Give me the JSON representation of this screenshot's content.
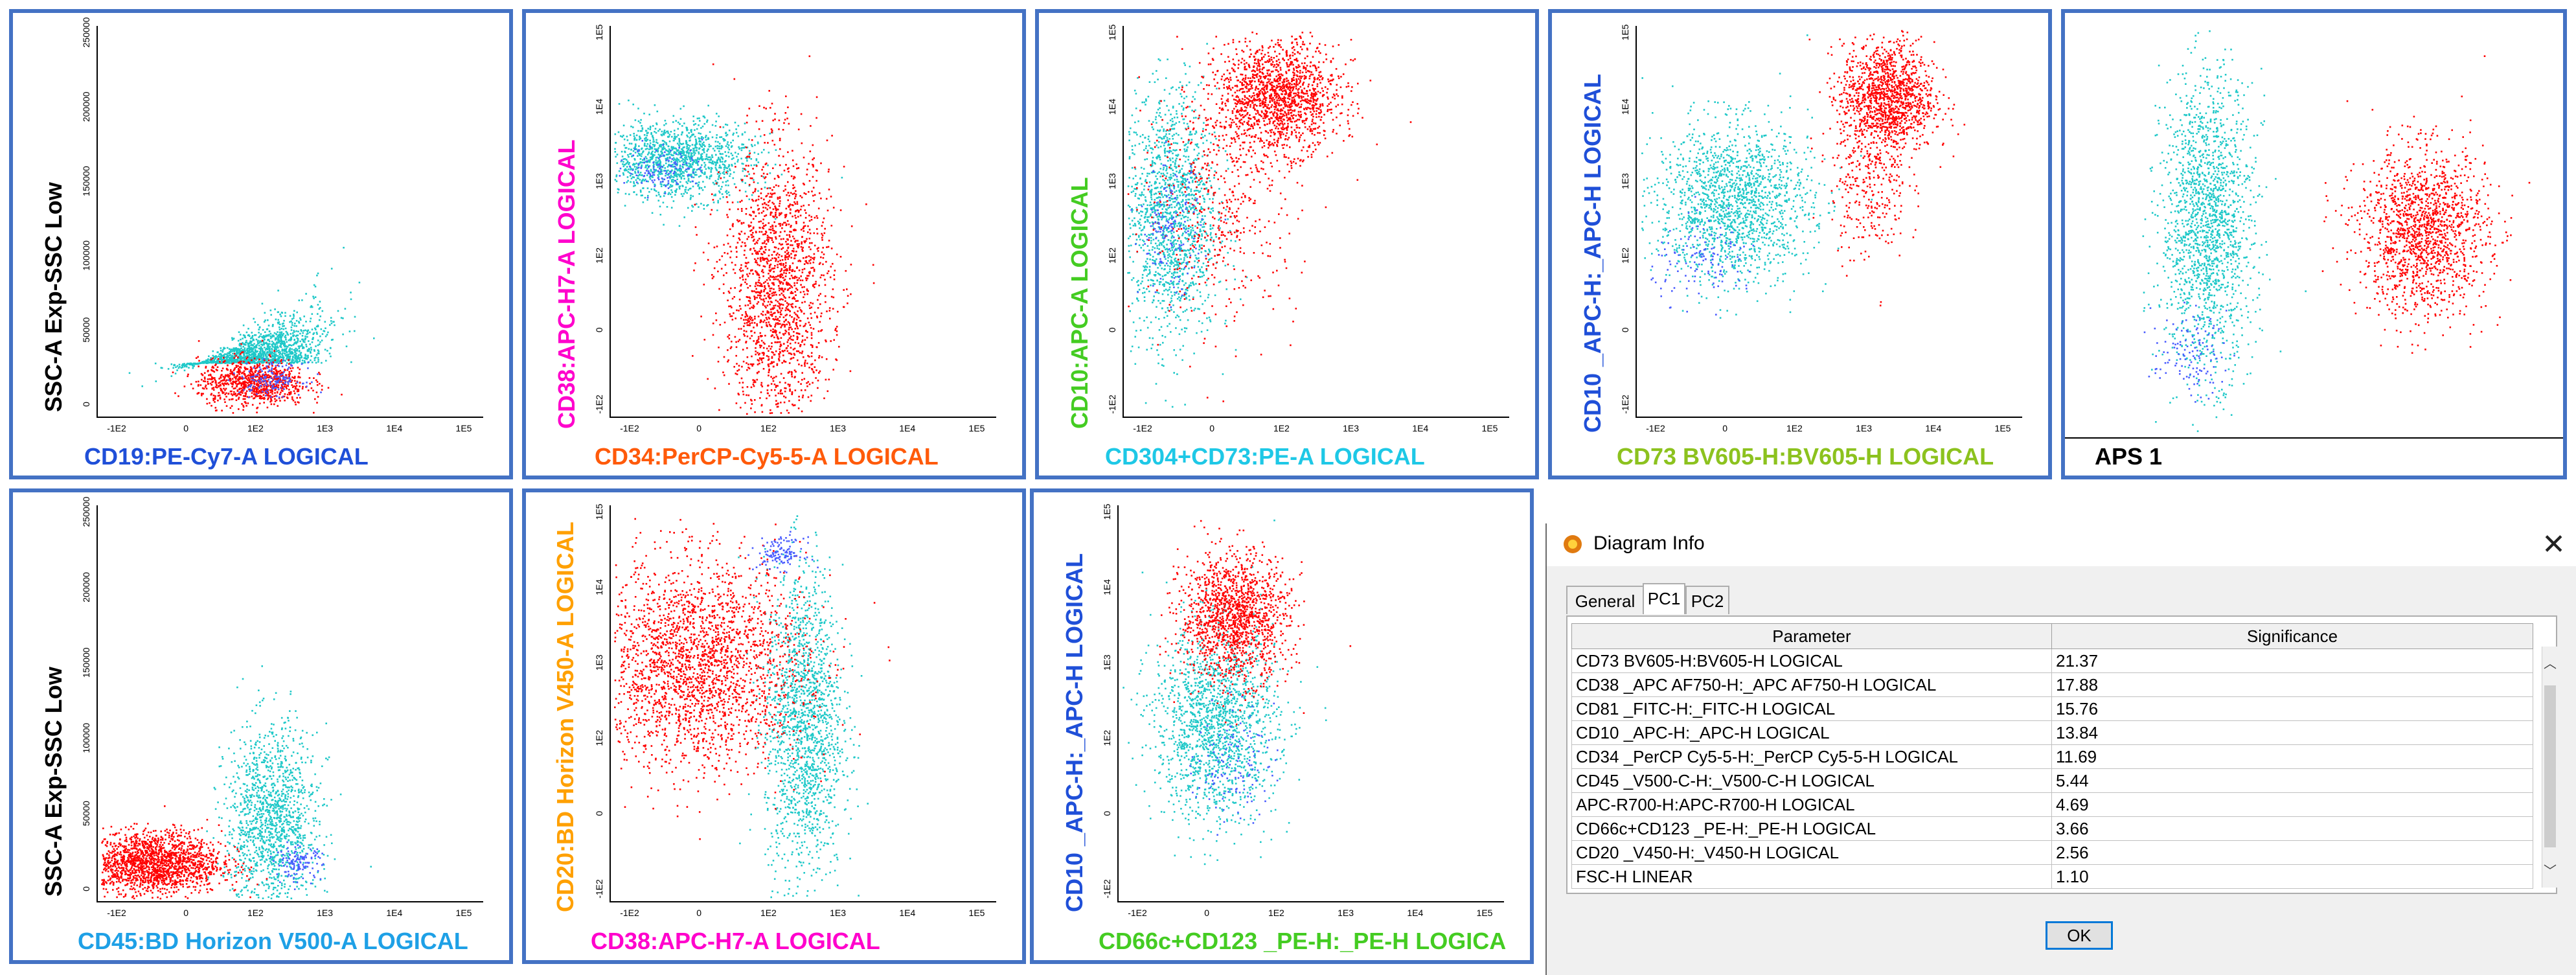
{
  "colors": {
    "red": "#ff0000",
    "cyan": "#1ec8c8",
    "blue": "#4a5cff",
    "border": "#4472c4"
  },
  "chart_data": [
    {
      "type": "scatter",
      "id": "p1",
      "xlabel": "CD19:PE-Cy7-A LOGICAL",
      "xlabel_color": "#1f4fd8",
      "ylabel": "SSC-A Exp-SSC Low",
      "ylabel_color": "#000000",
      "xticks": [
        "-1E2",
        "0",
        "1E2",
        "1E3",
        "1E4",
        "1E5"
      ],
      "yticks": [
        "0",
        "50000",
        "100000",
        "150000",
        "200000",
        "250000"
      ],
      "xlim": [
        -1000,
        250000
      ],
      "ylim": [
        0,
        250000
      ],
      "clusters": [
        {
          "color": "cyan",
          "cx": 0.42,
          "cy": 0.14,
          "sx": 0.09,
          "sy": 0.09,
          "n": 1400,
          "shape": "wedge"
        },
        {
          "color": "red",
          "cx": 0.4,
          "cy": 0.09,
          "sx": 0.07,
          "sy": 0.03,
          "n": 900
        },
        {
          "color": "blue",
          "cx": 0.45,
          "cy": 0.1,
          "sx": 0.04,
          "sy": 0.02,
          "n": 150
        }
      ]
    },
    {
      "type": "scatter",
      "id": "p2",
      "xlabel": "CD34:PerCP-Cy5-5-A LOGICAL",
      "xlabel_color": "#ff5a0a",
      "ylabel": "CD38:APC-H7-A LOGICAL",
      "ylabel_color": "#ff00cc",
      "xticks": [
        "-1E2",
        "0",
        "1E2",
        "1E3",
        "1E4",
        "1E5"
      ],
      "yticks": [
        "-1E2",
        "0",
        "1E2",
        "1E3",
        "1E4",
        "1E5"
      ],
      "clusters": [
        {
          "color": "cyan",
          "cx": 0.17,
          "cy": 0.66,
          "sx": 0.1,
          "sy": 0.05,
          "n": 1300
        },
        {
          "color": "red",
          "cx": 0.43,
          "cy": 0.33,
          "sx": 0.07,
          "sy": 0.18,
          "n": 1800
        },
        {
          "color": "blue",
          "cx": 0.14,
          "cy": 0.64,
          "sx": 0.05,
          "sy": 0.03,
          "n": 120
        }
      ]
    },
    {
      "type": "scatter",
      "id": "p3",
      "xlabel": "CD304+CD73:PE-A LOGICAL",
      "xlabel_color": "#1ec8e6",
      "ylabel": "CD10:APC-A LOGICAL",
      "ylabel_color": "#44cc22",
      "xticks": [
        "-1E2",
        "0",
        "1E2",
        "1E3",
        "1E4",
        "1E5"
      ],
      "yticks": [
        "-1E2",
        "0",
        "1E2",
        "1E3",
        "1E4",
        "1E5"
      ],
      "clusters": [
        {
          "color": "cyan",
          "cx": 0.12,
          "cy": 0.52,
          "sx": 0.06,
          "sy": 0.16,
          "n": 1500
        },
        {
          "color": "red",
          "cx": 0.4,
          "cy": 0.82,
          "sx": 0.08,
          "sy": 0.07,
          "n": 1500
        },
        {
          "color": "red",
          "cx": 0.25,
          "cy": 0.55,
          "sx": 0.1,
          "sy": 0.15,
          "n": 500
        },
        {
          "color": "blue",
          "cx": 0.12,
          "cy": 0.48,
          "sx": 0.04,
          "sy": 0.08,
          "n": 150
        }
      ]
    },
    {
      "type": "scatter",
      "id": "p4",
      "xlabel": "CD73 BV605-H:BV605-H LOGICAL",
      "xlabel_color": "#8cc21e",
      "ylabel": "CD10 _APC-H:_APC-H LOGICAL",
      "ylabel_color": "#1f4fd8",
      "xticks": [
        "-1E2",
        "0",
        "1E2",
        "1E3",
        "1E4",
        "1E5"
      ],
      "yticks": [
        "-1E2",
        "0",
        "1E2",
        "1E3",
        "1E4",
        "1E5"
      ],
      "clusters": [
        {
          "color": "cyan",
          "cx": 0.25,
          "cy": 0.55,
          "sx": 0.1,
          "sy": 0.1,
          "n": 1600
        },
        {
          "color": "red",
          "cx": 0.65,
          "cy": 0.82,
          "sx": 0.06,
          "sy": 0.07,
          "n": 1300
        },
        {
          "color": "red",
          "cx": 0.6,
          "cy": 0.6,
          "sx": 0.05,
          "sy": 0.1,
          "n": 300
        },
        {
          "color": "blue",
          "cx": 0.18,
          "cy": 0.4,
          "sx": 0.07,
          "sy": 0.05,
          "n": 120
        }
      ]
    },
    {
      "type": "scatter",
      "id": "p5",
      "title": "APS 1",
      "clusters": [
        {
          "color": "cyan",
          "cx": 0.28,
          "cy": 0.52,
          "sx": 0.05,
          "sy": 0.18,
          "n": 1700
        },
        {
          "color": "red",
          "cx": 0.75,
          "cy": 0.5,
          "sx": 0.07,
          "sy": 0.1,
          "n": 1500
        },
        {
          "color": "blue",
          "cx": 0.24,
          "cy": 0.2,
          "sx": 0.04,
          "sy": 0.05,
          "n": 120
        }
      ]
    },
    {
      "type": "scatter",
      "id": "p6",
      "xlabel": "CD45:BD Horizon V500-A LOGICAL",
      "xlabel_color": "#1ea0e6",
      "ylabel": "SSC-A Exp-SSC Low",
      "ylabel_color": "#000000",
      "xticks": [
        "-1E2",
        "0",
        "1E2",
        "1E3",
        "1E4",
        "1E5"
      ],
      "yticks": [
        "0",
        "50000",
        "100000",
        "150000",
        "200000",
        "250000"
      ],
      "clusters": [
        {
          "color": "red",
          "cx": 0.14,
          "cy": 0.1,
          "sx": 0.09,
          "sy": 0.04,
          "n": 1800
        },
        {
          "color": "cyan",
          "cx": 0.45,
          "cy": 0.2,
          "sx": 0.06,
          "sy": 0.12,
          "n": 1400
        },
        {
          "color": "blue",
          "cx": 0.52,
          "cy": 0.1,
          "sx": 0.03,
          "sy": 0.02,
          "n": 120
        }
      ]
    },
    {
      "type": "scatter",
      "id": "p7",
      "xlabel": "CD38:APC-H7-A LOGICAL",
      "xlabel_color": "#ff00cc",
      "ylabel": "CD20:BD Horizon V450-A LOGICAL",
      "ylabel_color": "#ffa000",
      "xticks": [
        "-1E2",
        "0",
        "1E2",
        "1E3",
        "1E4",
        "1E5"
      ],
      "yticks": [
        "-1E2",
        "0",
        "1E2",
        "1E3",
        "1E4",
        "1E5"
      ],
      "clusters": [
        {
          "color": "red",
          "cx": 0.22,
          "cy": 0.6,
          "sx": 0.14,
          "sy": 0.13,
          "n": 2400
        },
        {
          "color": "cyan",
          "cx": 0.5,
          "cy": 0.45,
          "sx": 0.05,
          "sy": 0.2,
          "n": 1600
        },
        {
          "color": "blue",
          "cx": 0.44,
          "cy": 0.88,
          "sx": 0.03,
          "sy": 0.02,
          "n": 120
        }
      ]
    },
    {
      "type": "scatter",
      "id": "p8",
      "xlabel": "CD66c+CD123 _PE-H:_PE-H LOGICA",
      "xlabel_color": "#44cc22",
      "ylabel": "CD10 _APC-H:_APC-H LOGICAL",
      "ylabel_color": "#1f4fd8",
      "xticks": [
        "-1E2",
        "0",
        "1E2",
        "1E3",
        "1E4",
        "1E5"
      ],
      "yticks": [
        "-1E2",
        "0",
        "1E2",
        "1E3",
        "1E4",
        "1E5"
      ],
      "clusters": [
        {
          "color": "red",
          "cx": 0.3,
          "cy": 0.72,
          "sx": 0.07,
          "sy": 0.08,
          "n": 1400
        },
        {
          "color": "cyan",
          "cx": 0.25,
          "cy": 0.45,
          "sx": 0.08,
          "sy": 0.12,
          "n": 1600
        },
        {
          "color": "blue",
          "cx": 0.3,
          "cy": 0.35,
          "sx": 0.05,
          "sy": 0.07,
          "n": 120
        }
      ]
    }
  ],
  "dialog": {
    "title": "Diagram Info",
    "tabs": [
      "General",
      "PC1",
      "PC2"
    ],
    "active_tab": "PC1",
    "columns": [
      "Parameter",
      "Significance"
    ],
    "rows": [
      [
        "CD73 BV605-H:BV605-H LOGICAL",
        "21.37"
      ],
      [
        "CD38 _APC AF750-H:_APC AF750-H LOGICAL",
        "17.88"
      ],
      [
        "CD81 _FITC-H:_FITC-H LOGICAL",
        "15.76"
      ],
      [
        "CD10 _APC-H:_APC-H LOGICAL",
        "13.84"
      ],
      [
        "CD34 _PerCP Cy5-5-H:_PerCP Cy5-5-H LOGICAL",
        "11.69"
      ],
      [
        "CD45 _V500-C-H:_V500-C-H LOGICAL",
        "5.44"
      ],
      [
        "APC-R700-H:APC-R700-H LOGICAL",
        "4.69"
      ],
      [
        "CD66c+CD123 _PE-H:_PE-H LOGICAL",
        "3.66"
      ],
      [
        "CD20 _V450-H:_V450-H LOGICAL",
        "2.56"
      ],
      [
        "FSC-H LINEAR",
        "1.10"
      ]
    ],
    "ok_label": "OK",
    "close_icon": "close-icon"
  }
}
